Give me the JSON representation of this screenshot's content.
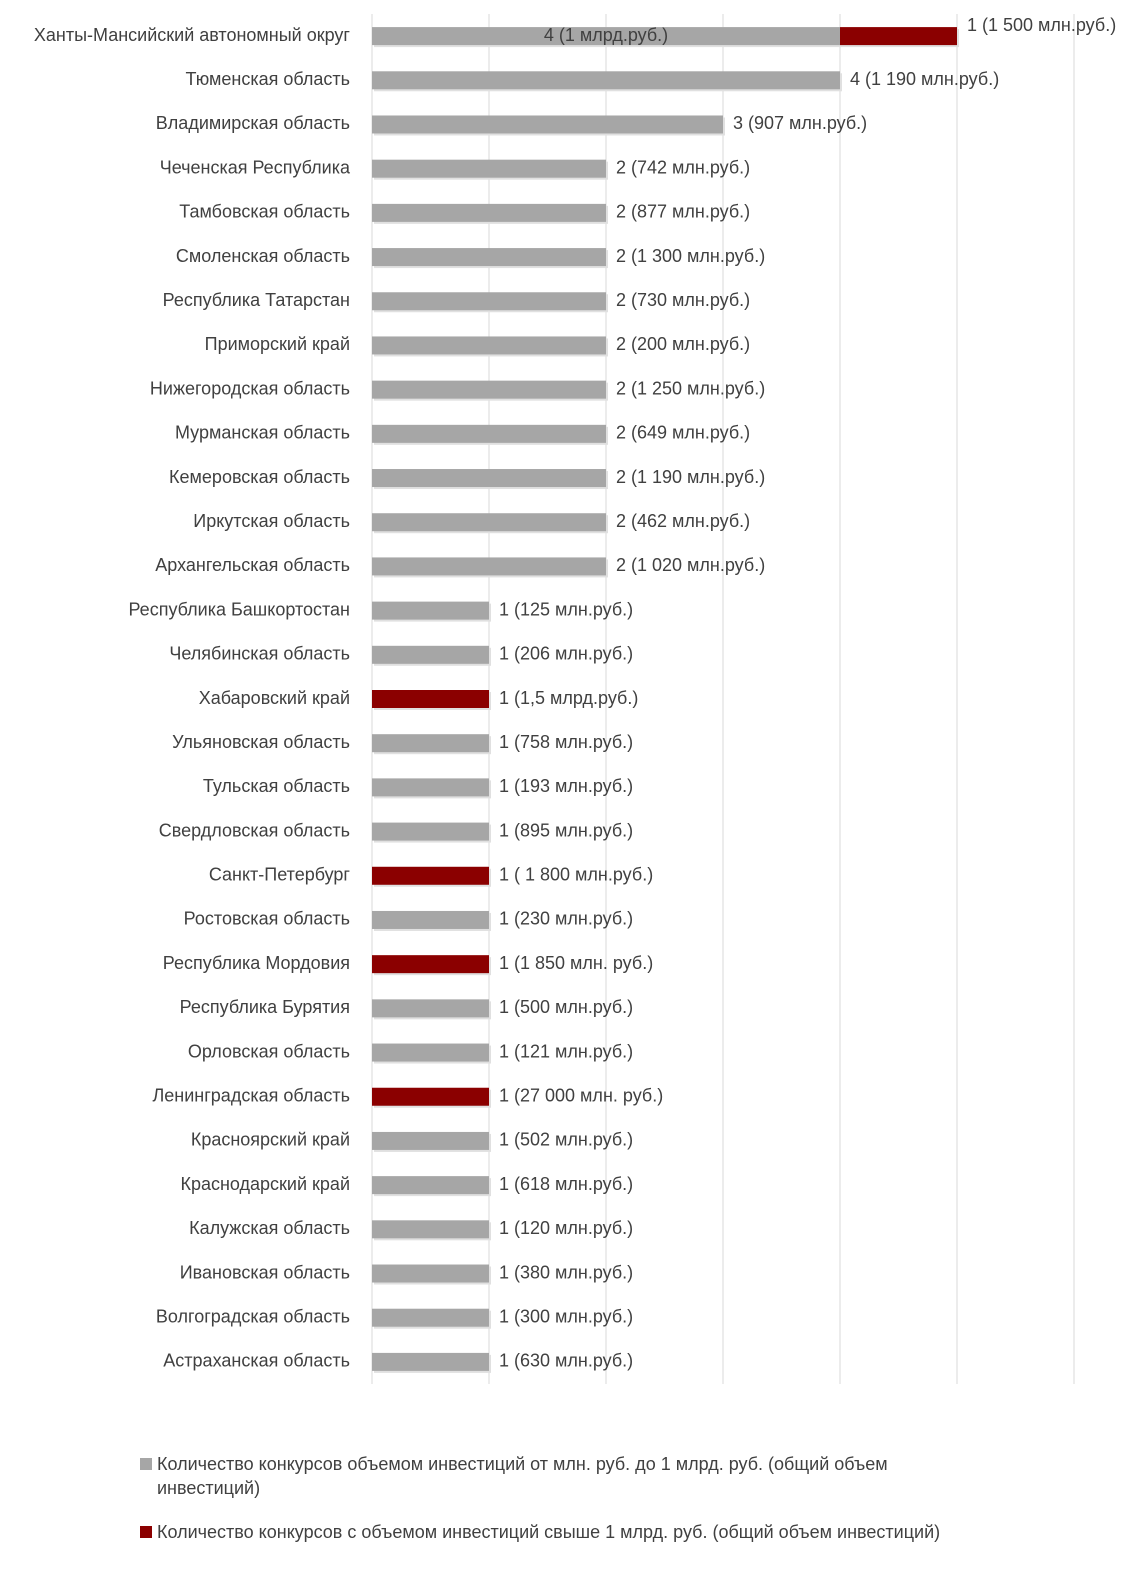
{
  "chart_data": {
    "type": "stacked_barh",
    "categories": [
      "Ханты-Мансийский автономный округ",
      "Тюменская область",
      "Владимирская область",
      "Чеченская Республика",
      "Тамбовская область",
      "Смоленская область",
      "Республика Татарстан",
      "Приморский край",
      "Нижегородская область",
      "Мурманская область",
      "Кемеровская область",
      "Иркутская область",
      "Архангельская область",
      "Республика Башкортостан",
      "Челябинская область",
      "Хабаровский край",
      "Ульяновская область",
      "Тульская область",
      "Свердловская область",
      "Санкт-Петербург",
      "Ростовская область",
      "Республика Мордовия",
      "Республика Бурятия",
      "Орловская область",
      "Ленинградская область",
      "Красноярский край",
      "Краснодарский край",
      "Калужская область",
      "Ивановская область",
      "Волгоградская область",
      "Астраханская область"
    ],
    "series": [
      {
        "name": "Количество конкурсов объемом инвестиций от млн. руб. до 1 млрд. руб. (общий объем инвестиций)",
        "color": "#a6a6a6",
        "values": [
          4,
          4,
          3,
          2,
          2,
          2,
          2,
          2,
          2,
          2,
          2,
          2,
          2,
          1,
          1,
          null,
          1,
          1,
          1,
          null,
          1,
          null,
          1,
          1,
          null,
          1,
          1,
          1,
          1,
          1,
          1
        ],
        "value_labels": [
          "4 (1 млрд.руб.)",
          "4 (1 190 млн.руб.)",
          "3 (907 млн.руб.)",
          "2 (742 млн.руб.)",
          "2 (877 млн.руб.)",
          "2 (1 300 млн.руб.)",
          "2 (730 млн.руб.)",
          "2 (200 млн.руб.)",
          "2 (1 250 млн.руб.)",
          "2 (649 млн.руб.)",
          "2 (1 190 млн.руб.)",
          "2 (462 млн.руб.)",
          "2 (1 020 млн.руб.)",
          "1 (125 млн.руб.)",
          "1 (206 млн.руб.)",
          null,
          "1 (758 млн.руб.)",
          "1 (193 млн.руб.)",
          "1 (895 млн.руб.)",
          null,
          "1 (230 млн.руб.)",
          null,
          "1 (500 млн.руб.)",
          "1 (121 млн.руб.)",
          null,
          "1 (502 млн.руб.)",
          "1 (618 млн.руб.)",
          "1 (120 млн.руб.)",
          "1 (380 млн.руб.)",
          "1 (300 млн.руб.)",
          "1 (630 млн.руб.)"
        ]
      },
      {
        "name": "Количество конкурсов с объемом инвестиций свыше 1 млрд. руб. (общий объем инвестиций)",
        "color": "#8b0000",
        "values": [
          1,
          null,
          null,
          null,
          null,
          null,
          null,
          null,
          null,
          null,
          null,
          null,
          null,
          null,
          null,
          1,
          null,
          null,
          null,
          1,
          null,
          1,
          null,
          null,
          1,
          null,
          null,
          null,
          null,
          null,
          null
        ],
        "value_labels": [
          "1 (1 500 млн.руб.)",
          null,
          null,
          null,
          null,
          null,
          null,
          null,
          null,
          null,
          null,
          null,
          null,
          null,
          null,
          "1  (1,5 млрд.руб.)",
          null,
          null,
          null,
          "1 ( 1 800 млн.руб.)",
          null,
          "1 (1 850 млн. руб.)",
          null,
          null,
          "1 (27 000 млн. руб.)",
          null,
          null,
          null,
          null,
          null,
          null
        ]
      }
    ],
    "xlim": [
      0,
      6
    ],
    "xticks": [
      0,
      1,
      2,
      3,
      4,
      5,
      6
    ],
    "grid": true,
    "legend": "bottom"
  }
}
